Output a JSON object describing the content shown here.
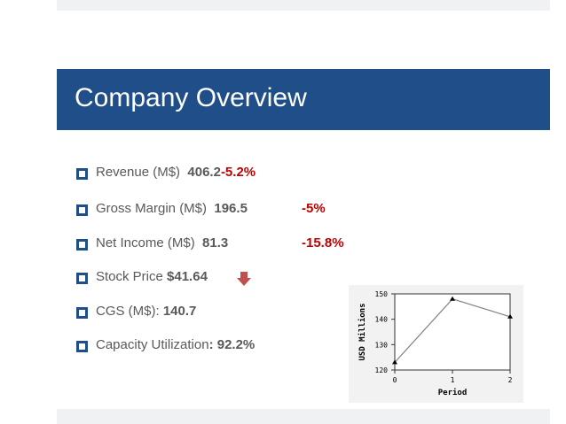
{
  "slide": {
    "title": "Company Overview"
  },
  "bullets": [
    {
      "label": "Revenue (M$)",
      "value": "406.2",
      "change": "-5.2%"
    },
    {
      "label": "Gross Margin (M$)",
      "value": "196.5",
      "change": "-5%"
    },
    {
      "label": "Net Income (M$)",
      "value": "81.3",
      "change": "-15.8%"
    },
    {
      "label": "Stock Price ",
      "value": "$41.64",
      "trend_icon": "down-arrow-icon"
    },
    {
      "label": "CGS (M$): ",
      "value": "140.7"
    },
    {
      "label": "Capacity Utilization",
      "value": ": 92.2%"
    }
  ],
  "chart_data": {
    "type": "line",
    "x": [
      0,
      1,
      2
    ],
    "series": [
      {
        "values": [
          123,
          148,
          141
        ]
      }
    ],
    "xlabel": "Period",
    "ylabel": "USD Millions",
    "xlim": [
      0,
      2
    ],
    "ylim": [
      120,
      150
    ],
    "xticks": [
      "0",
      "1",
      "2"
    ],
    "yticks": [
      "120",
      "130",
      "140",
      "150"
    ],
    "grid": false,
    "line_color": "#808080",
    "marker_color": "#000000"
  },
  "colors": {
    "title_bar": "#1f4e88",
    "negative": "#c00000",
    "arrow": "#c0504d"
  }
}
